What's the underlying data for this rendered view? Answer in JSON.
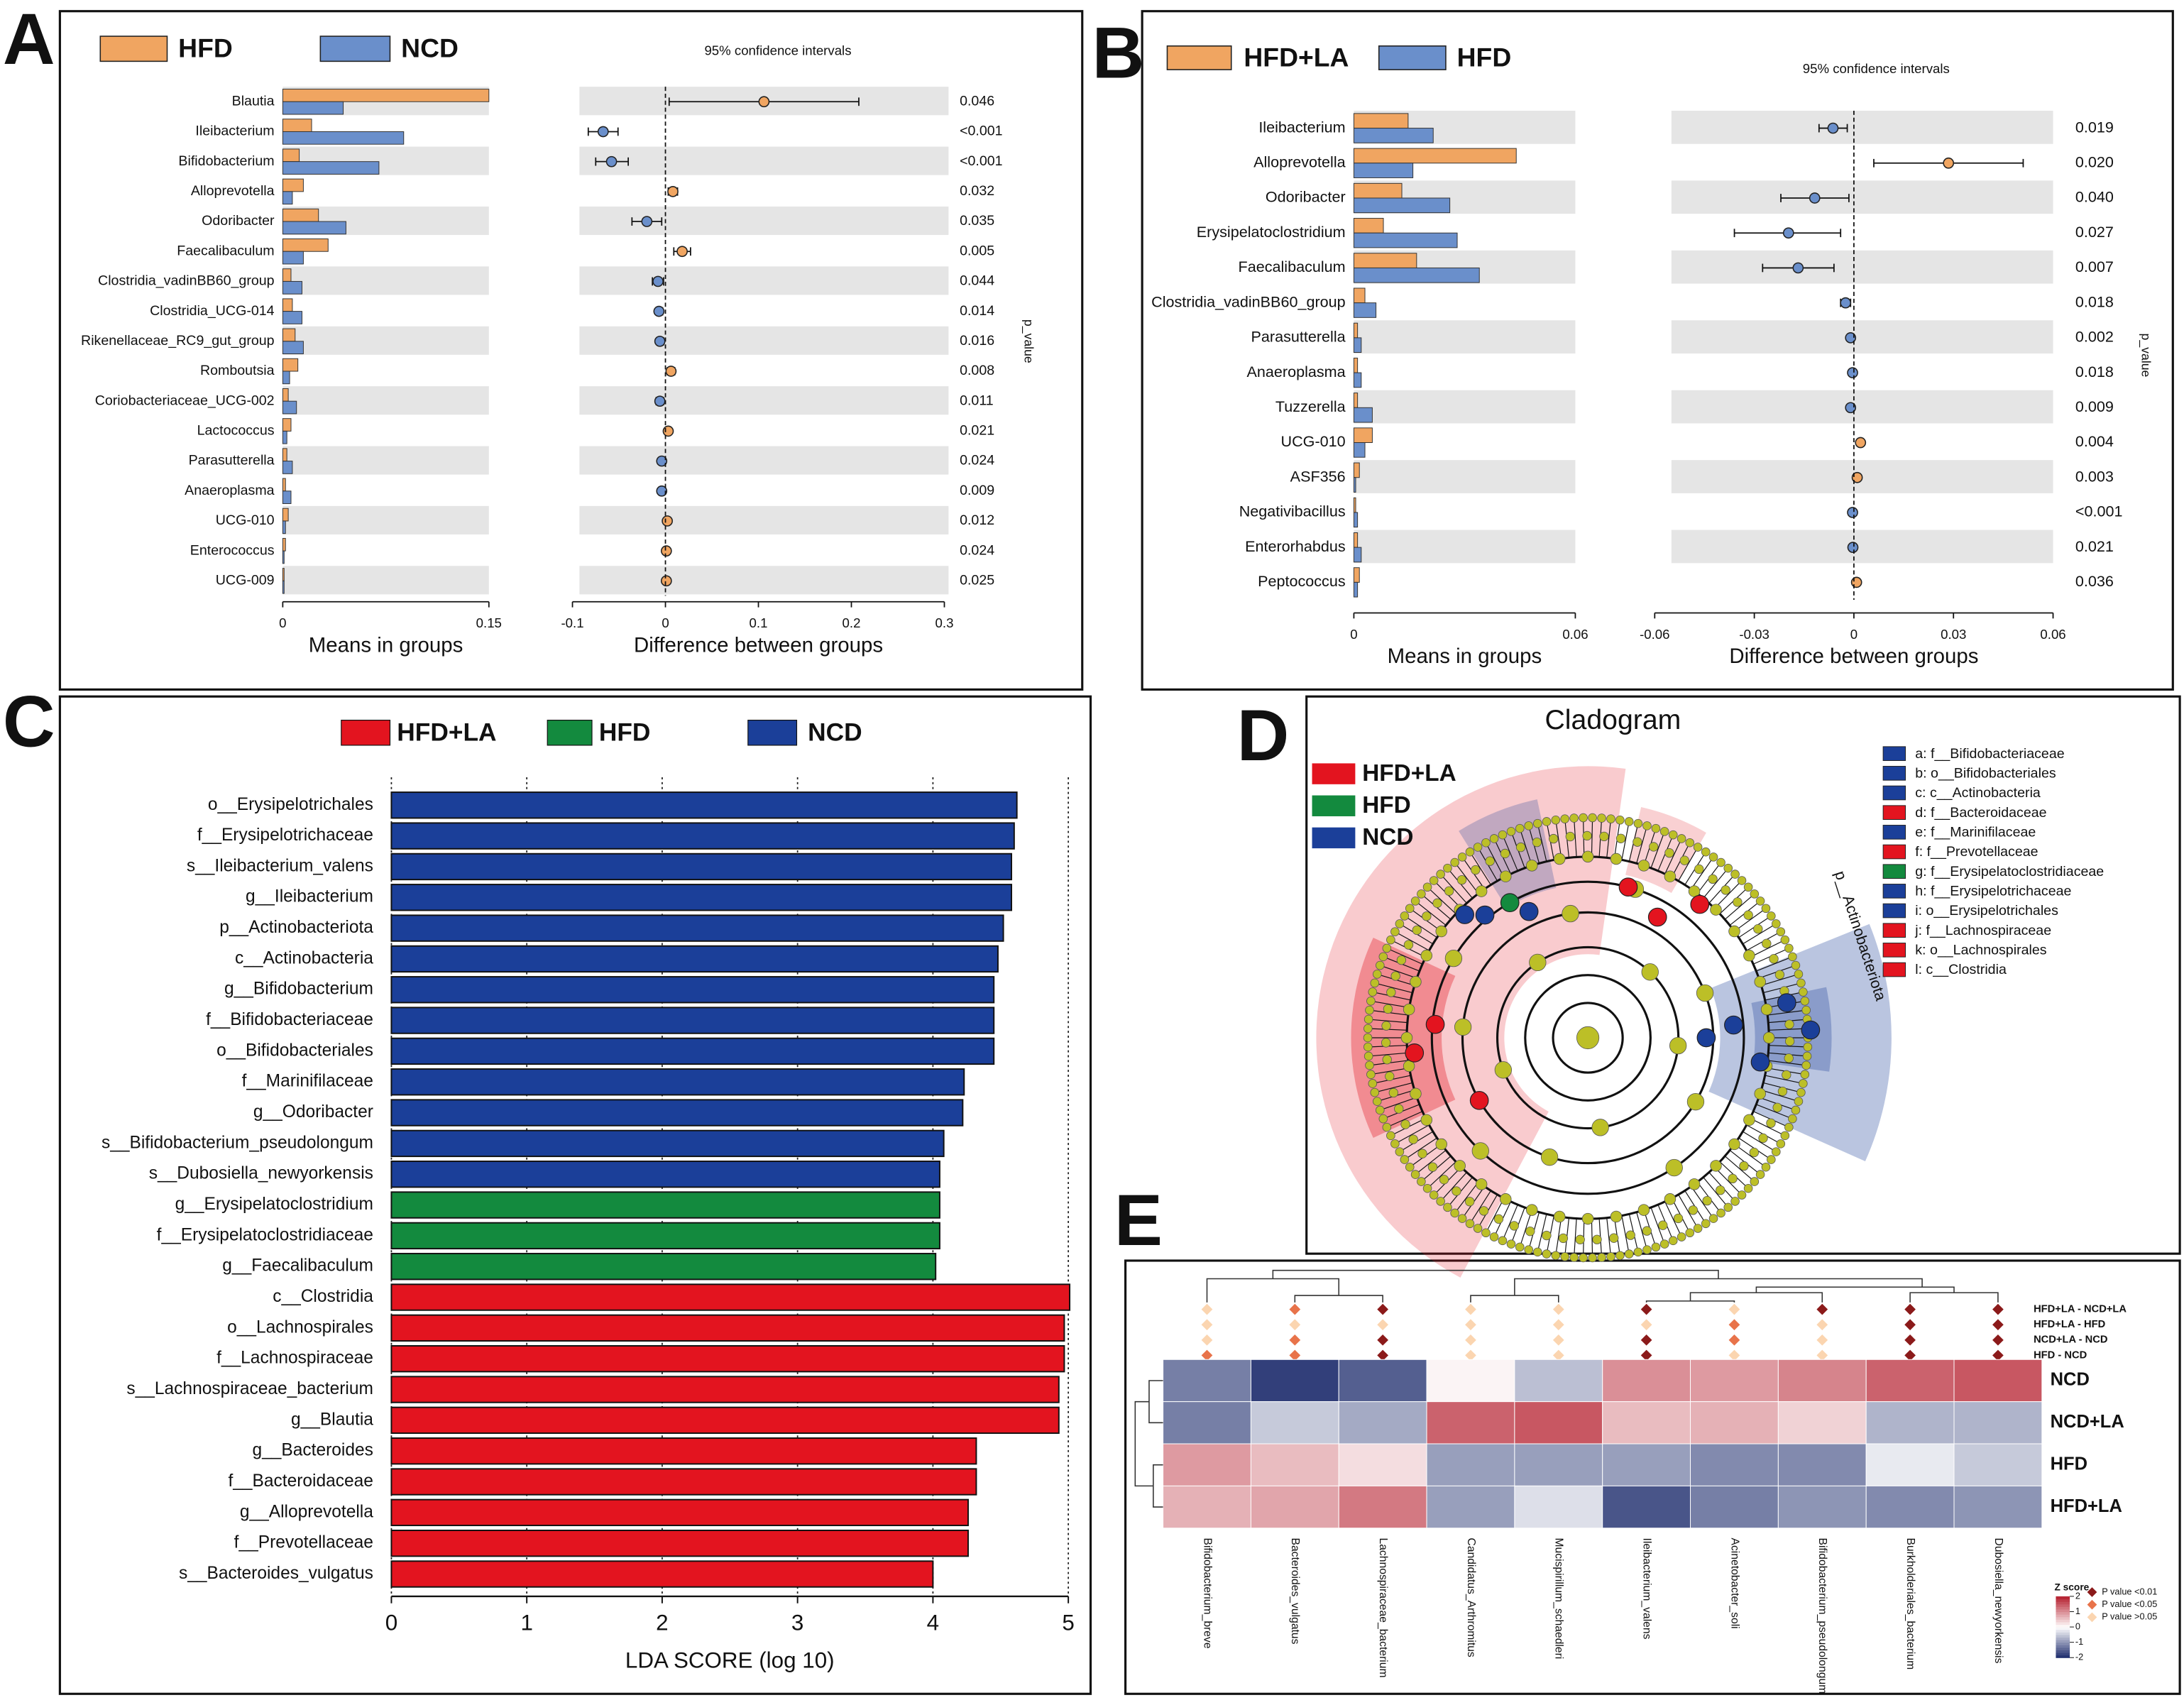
{
  "chart_data": [
    {
      "type": "extended_error_bar",
      "panel": "A",
      "categories": [
        "Blautia",
        "Ileibacterium",
        "Bifidobacterium",
        "Alloprevotella",
        "Odoribacter",
        "Faecalibaculum",
        "Clostridia_vadinBB60_group",
        "Clostridia_UCG-014",
        "Rikenellaceae_RC9_gut_group",
        "Romboutsia",
        "Coriobacteriaceae_UCG-002",
        "Lactococcus",
        "Parasutterella",
        "Anaeroplasma",
        "UCG-010",
        "Enterococcus",
        "UCG-009"
      ],
      "series": [
        {
          "name": "HFD",
          "color": "#f0a561",
          "values": [
            0.15,
            0.021,
            0.012,
            0.015,
            0.026,
            0.033,
            0.006,
            0.007,
            0.009,
            0.011,
            0.004,
            0.006,
            0.003,
            0.002,
            0.004,
            0.002,
            0.001
          ]
        },
        {
          "name": "NCD",
          "color": "#6a8fcb",
          "values": [
            0.044,
            0.088,
            0.07,
            0.007,
            0.046,
            0.015,
            0.014,
            0.014,
            0.015,
            0.005,
            0.01,
            0.003,
            0.007,
            0.006,
            0.002,
            0.001,
            0.001
          ]
        }
      ],
      "differences": [
        0.106,
        -0.067,
        -0.058,
        0.008,
        -0.02,
        0.018,
        -0.008,
        -0.007,
        -0.006,
        0.006,
        -0.006,
        0.003,
        -0.004,
        -0.004,
        0.002,
        0.001,
        0.001
      ],
      "ci_low": [
        0.004,
        -0.083,
        -0.075,
        0.003,
        -0.036,
        0.009,
        -0.014,
        -0.01,
        -0.009,
        0.002,
        -0.01,
        0.001,
        -0.007,
        -0.006,
        0.0,
        0.0,
        0.0
      ],
      "ci_high": [
        0.208,
        -0.051,
        -0.04,
        0.013,
        -0.004,
        0.027,
        -0.002,
        -0.003,
        -0.002,
        0.01,
        -0.002,
        0.005,
        -0.001,
        -0.001,
        0.004,
        0.002,
        0.002
      ],
      "p_values": [
        "0.046",
        "<0.001",
        "<0.001",
        "0.032",
        "0.035",
        "0.005",
        "0.044",
        "0.014",
        "0.016",
        "0.008",
        "0.011",
        "0.021",
        "0.024",
        "0.009",
        "0.012",
        "0.024",
        "0.025"
      ],
      "p_axis_label": "p_value",
      "ci_title": "95% confidence intervals",
      "means_xlabel": "Means in groups",
      "means_xlim": [
        0,
        0.15
      ],
      "means_xticks": [
        0,
        0.15
      ],
      "diff_xlabel": "Difference between groups",
      "diff_xlim": [
        -0.1,
        0.3
      ],
      "diff_xticks": [
        -0.1,
        0,
        0.1,
        0.2,
        0.3
      ]
    },
    {
      "type": "extended_error_bar",
      "panel": "B",
      "categories": [
        "Ileibacterium",
        "Alloprevotella",
        "Odoribacter",
        "Erysipelatoclostridium",
        "Faecalibaculum",
        "Clostridia_vadinBB60_group",
        "Parasutterella",
        "Anaeroplasma",
        "Tuzzerella",
        "UCG-010",
        "ASF356",
        "Negativibacillus",
        "Enterorhabdus",
        "Peptococcus"
      ],
      "series": [
        {
          "name": "HFD+LA",
          "color": "#f0a561",
          "values": [
            0.0147,
            0.044,
            0.013,
            0.008,
            0.017,
            0.003,
            0.001,
            0.001,
            0.001,
            0.005,
            0.0015,
            0.0005,
            0.001,
            0.0015
          ]
        },
        {
          "name": "HFD",
          "color": "#6a8fcb",
          "values": [
            0.0215,
            0.016,
            0.026,
            0.028,
            0.034,
            0.006,
            0.002,
            0.002,
            0.005,
            0.003,
            0.0005,
            0.001,
            0.002,
            0.001
          ]
        }
      ],
      "differences": [
        -0.0063,
        0.0285,
        -0.0118,
        -0.0197,
        -0.0168,
        -0.0025,
        -0.001,
        -0.0004,
        -0.001,
        0.002,
        0.001,
        -0.0004,
        -0.0003,
        0.0008
      ],
      "ci_low": [
        -0.0105,
        0.006,
        -0.022,
        -0.036,
        -0.0275,
        -0.004,
        -0.0016,
        -0.0008,
        -0.0017,
        0.0012,
        0.0004,
        -0.0008,
        -0.0007,
        0.0002
      ],
      "ci_high": [
        -0.002,
        0.051,
        -0.0015,
        -0.004,
        -0.006,
        -0.001,
        -0.0004,
        0,
        -0.0003,
        0.0028,
        0.0016,
        0,
        0.0001,
        0.0014
      ],
      "p_values": [
        "0.019",
        "0.020",
        "0.040",
        "0.027",
        "0.007",
        "0.018",
        "0.002",
        "0.018",
        "0.009",
        "0.004",
        "0.003",
        "<0.001",
        "0.021",
        "0.036"
      ],
      "p_axis_label": "p_value",
      "ci_title": "95% confidence intervals",
      "means_xlabel": "Means in groups",
      "means_xlim": [
        0,
        0.06
      ],
      "means_xticks": [
        0,
        0.06
      ],
      "diff_xlabel": "Difference between groups",
      "diff_xlim": [
        -0.06,
        0.06
      ],
      "diff_xticks": [
        -0.06,
        -0.03,
        0,
        0.03,
        0.06
      ]
    },
    {
      "type": "lda_bar",
      "panel": "C",
      "categories": [
        "o__Erysipelotrichales",
        "f__Erysipelotrichaceae",
        "s__Ileibacterium_valens",
        "g__Ileibacterium",
        "p__Actinobacteriota",
        "c__Actinobacteria",
        "g__Bifidobacterium",
        "f__Bifidobacteriaceae",
        "o__Bifidobacteriales",
        "f__Marinifilaceae",
        "g__Odoribacter",
        "s__Bifidobacterium_pseudolongum",
        "s__Dubosiella_newyorkensis",
        "g__Erysipelatoclostridium",
        "f__Erysipelatoclostridiaceae",
        "g__Faecalibaculum",
        "c__Clostridia",
        "o__Lachnospirales",
        "f__Lachnospiraceae",
        "s__Lachnospiraceae_bacterium",
        "g__Blautia",
        "g__Bacteroides",
        "f__Bacteroidaceae",
        "g__Alloprevotella",
        "f__Prevotellaceae",
        "s__Bacteroides_vulgatus"
      ],
      "series": [
        {
          "name": "HFD+LA",
          "color": "#e3141f",
          "values": [
            null,
            null,
            null,
            null,
            null,
            null,
            null,
            null,
            null,
            null,
            null,
            null,
            null,
            null,
            null,
            null,
            5.01,
            4.97,
            4.97,
            4.93,
            4.93,
            4.32,
            4.32,
            4.26,
            4.26,
            4.0
          ]
        },
        {
          "name": "HFD",
          "color": "#138a3e",
          "values": [
            null,
            null,
            null,
            null,
            null,
            null,
            null,
            null,
            null,
            null,
            null,
            null,
            null,
            4.05,
            4.05,
            4.02,
            null,
            null,
            null,
            null,
            null,
            null,
            null,
            null,
            null,
            null
          ]
        },
        {
          "name": "NCD",
          "color": "#1b3f99",
          "values": [
            4.62,
            4.6,
            4.58,
            4.58,
            4.52,
            4.48,
            4.45,
            4.45,
            4.45,
            4.23,
            4.22,
            4.08,
            4.05,
            null,
            null,
            null,
            null,
            null,
            null,
            null,
            null,
            null,
            null,
            null,
            null,
            null
          ]
        }
      ],
      "xlabel": "LDA SCORE (log 10)",
      "xlim": [
        0,
        5
      ],
      "xticks": [
        0,
        1,
        2,
        3,
        4,
        5
      ],
      "grid": true
    },
    {
      "type": "cladogram",
      "panel": "D",
      "title": "Cladogram",
      "groups": [
        {
          "name": "HFD+LA",
          "color": "#e3141f"
        },
        {
          "name": "HFD",
          "color": "#138a3e"
        },
        {
          "name": "NCD",
          "color": "#1b3f99"
        }
      ],
      "clades": [
        {
          "label": "a: f__Bifidobacteriaceae",
          "color": "#1b3f99"
        },
        {
          "label": "b: o__Bifidobacteriales",
          "color": "#1b3f99"
        },
        {
          "label": "c: c__Actinobacteria",
          "color": "#1b3f99"
        },
        {
          "label": "d: f__Bacteroidaceae",
          "color": "#e3141f"
        },
        {
          "label": "e: f__Marinifilaceae",
          "color": "#1b3f99"
        },
        {
          "label": "f: f__Prevotellaceae",
          "color": "#e3141f"
        },
        {
          "label": "g: f__Erysipelatoclostridiaceae",
          "color": "#138a3e"
        },
        {
          "label": "h: f__Erysipelotrichaceae",
          "color": "#1b3f99"
        },
        {
          "label": "i: o__Erysipelotrichales",
          "color": "#1b3f99"
        },
        {
          "label": "j: f__Lachnospiraceae",
          "color": "#e3141f"
        },
        {
          "label": "k: o__Lachnospirales",
          "color": "#e3141f"
        },
        {
          "label": "l: c__Clostridia",
          "color": "#e3141f"
        }
      ],
      "annotation": "p__Actinobacteriota"
    },
    {
      "type": "heatmap",
      "panel": "E",
      "columns": [
        "Bifidobacterium_breve",
        "Bacteroides_vulgatus",
        "Lachnospiraceae_bacterium",
        "Candidatus_Arthromitus",
        "Mucispirillum_schaedleri",
        "Ileibacterium_valens",
        "Acinetobacter_soli",
        "Bifidobacterium_pseudolongum",
        "Burkholderiales_bacterium",
        "Dubosiella_newyorkensis"
      ],
      "rows": [
        "NCD",
        "NCD+LA",
        "HFD",
        "HFD+LA"
      ],
      "values": [
        [
          -1.2,
          -1.8,
          -1.5,
          0.1,
          -0.6,
          1.0,
          0.9,
          1.1,
          1.4,
          1.5
        ],
        [
          -1.2,
          -0.5,
          -0.8,
          1.4,
          1.5,
          0.6,
          0.7,
          0.4,
          -0.7,
          -0.7
        ],
        [
          0.9,
          0.6,
          0.3,
          -0.9,
          -0.9,
          -0.9,
          -1.1,
          -1.1,
          -0.2,
          -0.5
        ],
        [
          0.7,
          0.8,
          1.2,
          -0.9,
          -0.3,
          -1.6,
          -1.2,
          -1.0,
          -1.1,
          -1.0
        ]
      ],
      "colorscale": [
        "#1b2a6b",
        "#ffffff",
        "#b51f2e"
      ],
      "zlim": [
        -2,
        2
      ],
      "zticks": [
        2,
        1,
        0,
        -1,
        -2
      ],
      "zlabel": "Z score",
      "comparisons": [
        "HFD+LA - NCD+LA",
        "HFD+LA - HFD",
        "NCD+LA - NCD",
        "HFD - NCD"
      ],
      "significance": [
        [
          2,
          2,
          2,
          1
        ],
        [
          1,
          2,
          1,
          1
        ],
        [
          0,
          2,
          0,
          0
        ],
        [
          2,
          2,
          2,
          2
        ],
        [
          2,
          2,
          2,
          2
        ],
        [
          0,
          2,
          0,
          0
        ],
        [
          2,
          1,
          1,
          2
        ],
        [
          0,
          2,
          2,
          2
        ],
        [
          0,
          0,
          0,
          0
        ],
        [
          0,
          0,
          0,
          0
        ]
      ],
      "p_levels": [
        {
          "label": "P value <0.01",
          "color": "#8b1a1a"
        },
        {
          "label": "P value <0.05",
          "color": "#e8734a"
        },
        {
          "label": "P value >0.05",
          "color": "#fbd5b0"
        }
      ]
    }
  ]
}
